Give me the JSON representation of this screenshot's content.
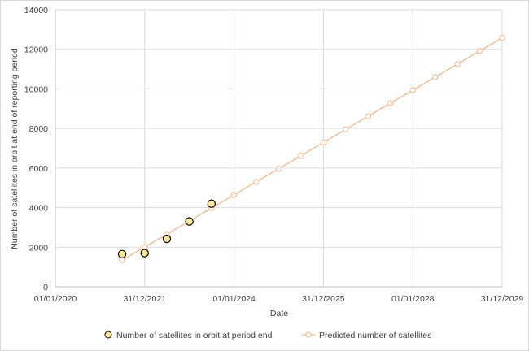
{
  "chart_data": {
    "type": "scatter",
    "title": "",
    "xlabel": "Date",
    "ylabel": "Number of satellites in orbit at end of reporting period",
    "xlim": [
      "01/01/2020",
      "31/12/2029"
    ],
    "x_tick_labels": [
      "01/01/2020",
      "31/12/2021",
      "01/01/2024",
      "31/12/2025",
      "01/01/2028",
      "31/12/2029"
    ],
    "ylim": [
      0,
      14000
    ],
    "y_tick_labels": [
      "0",
      "2000",
      "4000",
      "6000",
      "8000",
      "10000",
      "12000",
      "14000"
    ],
    "grid": true,
    "legend_position": "bottom",
    "series": [
      {
        "name": "Number of satellites in orbit at period end",
        "style": "markers",
        "color": "#ffe699",
        "points": [
          {
            "date": "2021-06-30",
            "value": 1650
          },
          {
            "date": "2021-12-31",
            "value": 1700
          },
          {
            "date": "2022-06-30",
            "value": 2420
          },
          {
            "date": "2022-12-31",
            "value": 3300
          },
          {
            "date": "2023-06-30",
            "value": 4200
          }
        ]
      },
      {
        "name": "Predicted number of satellites",
        "style": "line-markers",
        "color": "#f4b183",
        "points": [
          {
            "date": "2021-06-30",
            "value": 1350
          },
          {
            "date": "2021-12-31",
            "value": 2000
          },
          {
            "date": "2022-06-30",
            "value": 2650
          },
          {
            "date": "2022-12-31",
            "value": 3320
          },
          {
            "date": "2023-06-30",
            "value": 3980
          },
          {
            "date": "2023-12-31",
            "value": 4640
          },
          {
            "date": "2024-06-30",
            "value": 5300
          },
          {
            "date": "2024-12-31",
            "value": 5960
          },
          {
            "date": "2025-06-30",
            "value": 6620
          },
          {
            "date": "2025-12-31",
            "value": 7290
          },
          {
            "date": "2026-06-30",
            "value": 7950
          },
          {
            "date": "2026-12-31",
            "value": 8610
          },
          {
            "date": "2027-06-30",
            "value": 9270
          },
          {
            "date": "2027-12-31",
            "value": 9930
          },
          {
            "date": "2028-06-30",
            "value": 10590
          },
          {
            "date": "2028-12-31",
            "value": 11250
          },
          {
            "date": "2029-06-30",
            "value": 11910
          },
          {
            "date": "2029-12-31",
            "value": 12580
          }
        ]
      }
    ]
  }
}
